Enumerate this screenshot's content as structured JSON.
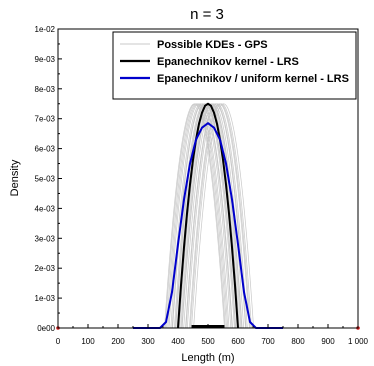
{
  "chart_data": {
    "type": "line",
    "title": "n = 3",
    "xlabel": "Length (m)",
    "ylabel": "Density",
    "xlim": [
      0,
      1000
    ],
    "ylim": [
      0,
      0.01
    ],
    "x_ticks": [
      0,
      100,
      200,
      300,
      400,
      500,
      600,
      700,
      800,
      900,
      1000
    ],
    "x_tick_labels": [
      "0",
      "100",
      "200",
      "300",
      "400",
      "500",
      "600",
      "700",
      "800",
      "900",
      "1 000"
    ],
    "y_ticks": [
      0,
      0.001,
      0.002,
      0.003,
      0.004,
      0.005,
      0.006,
      0.007,
      0.008,
      0.009,
      0.01
    ],
    "y_tick_labels": [
      "0e00",
      "1e-03",
      "2e-03",
      "3e-03",
      "4e-03",
      "5e-03",
      "6e-03",
      "7e-03",
      "8e-03",
      "9e-03",
      "1e-02"
    ],
    "grid": false,
    "legend_position": "top-right",
    "series": [
      {
        "name": "Possible KDEs - GPS",
        "kind": "bundle",
        "color": "#c8c8c8",
        "note_bandwidth": 100,
        "centers": [
          455,
          462,
          470,
          476,
          482,
          488,
          493,
          497,
          501,
          505,
          509,
          514,
          519,
          525,
          531,
          538,
          545,
          552,
          458,
          466,
          480,
          491,
          503,
          512,
          527,
          541
        ]
      },
      {
        "name": "Epanechnikov kernel - LRS",
        "color": "#000000",
        "x": [
          400,
          410,
          420,
          430,
          440,
          450,
          460,
          470,
          480,
          490,
          500,
          510,
          520,
          530,
          540,
          550,
          560,
          570,
          580,
          590,
          600
        ],
        "y": [
          0,
          0.00143,
          0.0027,
          0.00383,
          0.0048,
          0.00563,
          0.0063,
          0.00683,
          0.0072,
          0.00743,
          0.0075,
          0.00743,
          0.0072,
          0.00683,
          0.0063,
          0.00563,
          0.0048,
          0.00383,
          0.0027,
          0.00143,
          0
        ]
      },
      {
        "name": "Epanechnikov / uniform kernel - LRS",
        "color": "#0000cc",
        "x": [
          250,
          340,
          360,
          380,
          400,
          420,
          440,
          460,
          480,
          500,
          520,
          540,
          560,
          580,
          600,
          620,
          640,
          660,
          750
        ],
        "y": [
          0,
          0,
          0.0002,
          0.0012,
          0.0028,
          0.0043,
          0.0055,
          0.0063,
          0.0067,
          0.00685,
          0.0067,
          0.0063,
          0.0055,
          0.0043,
          0.0028,
          0.0012,
          0.0002,
          0,
          0
        ]
      }
    ],
    "observations": {
      "x": [
        450,
        460,
        470,
        480,
        490,
        500,
        510,
        520,
        530,
        540,
        550
      ],
      "y": 0,
      "color": "#000000"
    },
    "edge_markers": {
      "x": [
        0,
        1000
      ],
      "y": 0,
      "color": "#d11a1a"
    }
  }
}
